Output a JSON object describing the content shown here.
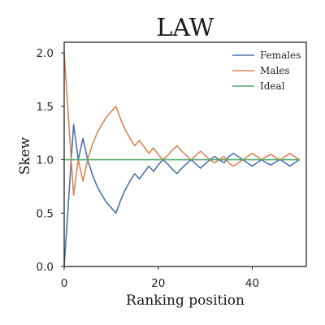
{
  "chart_data": {
    "type": "line",
    "title": "LAW",
    "xlabel": "Ranking position",
    "ylabel": "Skew",
    "xlim": [
      0,
      51.5
    ],
    "ylim": [
      0,
      2.1
    ],
    "xticks": [
      0,
      20,
      40
    ],
    "yticks": [
      0.0,
      0.5,
      1.0,
      1.5,
      2.0
    ],
    "xtick_labels": [
      "0",
      "20",
      "40"
    ],
    "ytick_labels": [
      "0.0",
      "0.5",
      "1.0",
      "1.5",
      "2.0"
    ],
    "grid": false,
    "legend_position": "top-right",
    "series": [
      {
        "name": "Females",
        "color": "#4c72b0",
        "x": [
          0,
          2,
          3,
          4,
          5,
          6,
          7,
          8,
          9,
          10,
          11,
          12,
          13,
          14,
          15,
          16,
          17,
          18,
          19,
          20,
          21,
          22,
          23,
          24,
          25,
          26,
          27,
          28,
          29,
          30,
          31,
          32,
          33,
          34,
          35,
          36,
          37,
          38,
          39,
          40,
          41,
          42,
          43,
          44,
          45,
          46,
          47,
          48,
          49,
          50
        ],
        "values": [
          0.0,
          1.33,
          1.0,
          1.2,
          1.0,
          0.86,
          0.75,
          0.67,
          0.6,
          0.55,
          0.5,
          0.62,
          0.72,
          0.8,
          0.87,
          0.82,
          0.88,
          0.94,
          0.89,
          0.95,
          1.0,
          0.96,
          0.91,
          0.87,
          0.92,
          0.96,
          1.0,
          0.96,
          0.92,
          0.96,
          1.0,
          1.03,
          1.0,
          0.97,
          1.03,
          1.06,
          1.03,
          1.0,
          0.97,
          0.94,
          0.97,
          1.0,
          0.97,
          0.95,
          0.98,
          1.0,
          0.97,
          0.94,
          0.97,
          1.0
        ]
      },
      {
        "name": "Males",
        "color": "#dd8452",
        "x": [
          0,
          2,
          3,
          4,
          5,
          6,
          7,
          8,
          9,
          10,
          11,
          12,
          13,
          14,
          15,
          16,
          17,
          18,
          19,
          20,
          21,
          22,
          23,
          24,
          25,
          26,
          27,
          28,
          29,
          30,
          31,
          32,
          33,
          34,
          35,
          36,
          37,
          38,
          39,
          40,
          41,
          42,
          43,
          44,
          45,
          46,
          47,
          48,
          49,
          50
        ],
        "values": [
          2.0,
          0.67,
          1.0,
          0.8,
          1.0,
          1.14,
          1.25,
          1.33,
          1.4,
          1.45,
          1.5,
          1.38,
          1.28,
          1.2,
          1.13,
          1.18,
          1.12,
          1.06,
          1.11,
          1.05,
          1.0,
          1.04,
          1.09,
          1.13,
          1.08,
          1.04,
          1.0,
          1.04,
          1.08,
          1.04,
          1.0,
          0.97,
          1.0,
          1.03,
          0.97,
          0.94,
          0.97,
          1.0,
          1.03,
          1.06,
          1.03,
          1.0,
          1.03,
          1.05,
          1.02,
          1.0,
          1.03,
          1.06,
          1.03,
          1.0
        ]
      },
      {
        "name": "Ideal",
        "color": "#55a868",
        "x": [
          0,
          50
        ],
        "values": [
          1.0,
          1.0
        ]
      }
    ]
  }
}
